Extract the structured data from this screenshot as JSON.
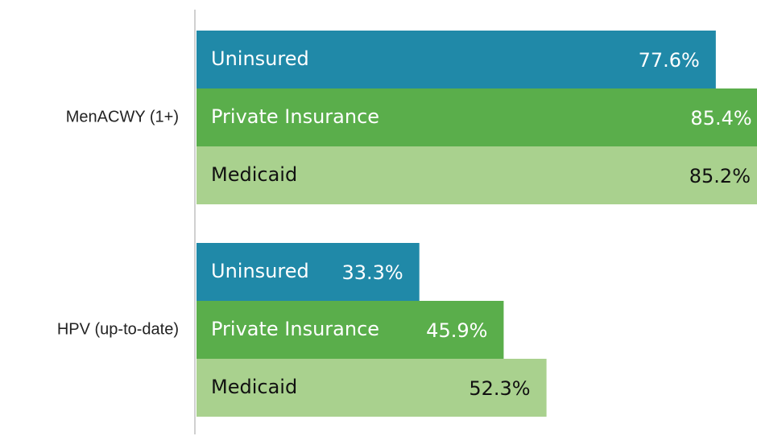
{
  "chart_data": {
    "type": "bar",
    "orientation": "horizontal",
    "categories": [
      "MenACWY (1+)",
      "HPV (up-to-date)"
    ],
    "series": [
      {
        "name": "Uninsured",
        "color": "#2089a8",
        "values": [
          77.6,
          33.3
        ],
        "value_labels": [
          "77.6%",
          "33.3%"
        ]
      },
      {
        "name": "Private Insurance",
        "color": "#5aae4b",
        "values": [
          85.4,
          45.9
        ],
        "value_labels": [
          "85.4%",
          "45.9%"
        ]
      },
      {
        "name": "Medicaid",
        "color": "#a9d18e",
        "values": [
          85.2,
          52.3
        ],
        "value_labels": [
          "85.2%",
          "52.3%"
        ]
      }
    ],
    "xlim": [
      0,
      84
    ]
  }
}
